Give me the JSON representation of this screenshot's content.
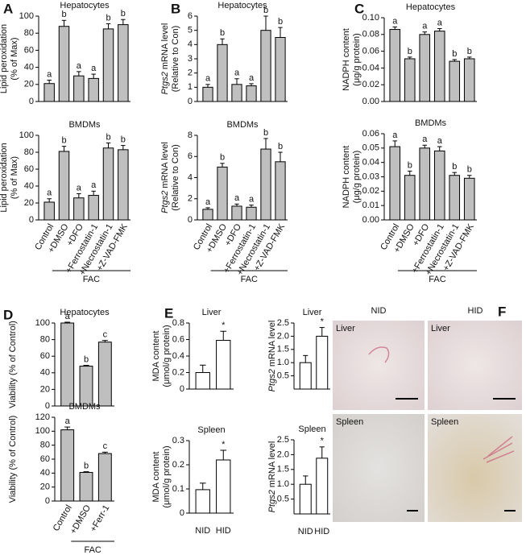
{
  "panel_labels": [
    "A",
    "B",
    "C",
    "D",
    "E",
    "F"
  ],
  "chart_data": [
    {
      "type": "bar",
      "title": "Hepatocytes",
      "ylabel": [
        "Lipid peroxidation",
        "(% of Max)"
      ],
      "categories": [
        null,
        null,
        null,
        null,
        null,
        null
      ],
      "values": [
        21,
        88,
        30,
        27,
        85,
        90
      ],
      "errors": [
        4,
        7,
        5,
        5,
        6,
        6
      ],
      "letters": [
        "a",
        "b",
        "a",
        "a",
        "b",
        "b"
      ],
      "color": "#bfbfbf",
      "ylim": [
        0,
        100
      ],
      "yticks": [
        0,
        20,
        40,
        60,
        80,
        100
      ]
    },
    {
      "type": "bar",
      "title": "BMDMs",
      "ylabel": [
        "Lipid peroxidation",
        "(% of Max)"
      ],
      "categories": [
        "Control",
        "+DMSO",
        "+DFO",
        "+Ferrostatin-1",
        "+Necrostatin-1",
        "+Z-VAD-FMK"
      ],
      "values": [
        21,
        81,
        26,
        29,
        85,
        83
      ],
      "errors": [
        4,
        6,
        5,
        5,
        6,
        5
      ],
      "letters": [
        "a",
        "b",
        "a",
        "a",
        "b",
        "b"
      ],
      "color": "#bfbfbf",
      "ylim": [
        0,
        100
      ],
      "yticks": [
        0,
        20,
        40,
        60,
        80,
        100
      ],
      "group_label": "FAC"
    },
    {
      "type": "bar",
      "title": "Hepatocytes",
      "ylabel_gene": "Ptgs2",
      "ylabel": [
        "mRNA level",
        "(Relative to Con)"
      ],
      "categories": [
        null,
        null,
        null,
        null,
        null,
        null
      ],
      "values": [
        1,
        4,
        1.2,
        1.1,
        5,
        4.5
      ],
      "errors": [
        0.2,
        0.4,
        0.4,
        0.15,
        1,
        0.7
      ],
      "letters": [
        "a",
        "b",
        "a",
        "a",
        "b",
        "b"
      ],
      "color": "#bfbfbf",
      "ylim": [
        0,
        6
      ],
      "yticks": [
        0,
        1,
        2,
        3,
        4,
        5,
        6
      ]
    },
    {
      "type": "bar",
      "title": "BMDMs",
      "ylabel_gene": "Ptgs2",
      "ylabel": [
        "mRNA level",
        "(Relative to Con)"
      ],
      "categories": [
        "Control",
        "+DMSO",
        "+DFO",
        "+Ferrostatin-1",
        "+Necrostatin-1",
        "+Z-VAD-FMK"
      ],
      "values": [
        1,
        5,
        1.3,
        1.2,
        6.7,
        5.5
      ],
      "errors": [
        0.15,
        0.35,
        0.2,
        0.2,
        1,
        0.9
      ],
      "letters": [
        "a",
        "b",
        "a",
        "a",
        "b",
        "b"
      ],
      "color": "#bfbfbf",
      "ylim": [
        0,
        8
      ],
      "yticks": [
        0,
        2,
        4,
        6,
        8
      ],
      "group_label": "FAC"
    },
    {
      "type": "bar",
      "title": "Hepatocytes",
      "ylabel": [
        "NADPH content",
        "(μg/g protein)"
      ],
      "categories": [
        null,
        null,
        null,
        null,
        null,
        null
      ],
      "values": [
        0.086,
        0.051,
        0.08,
        0.084,
        0.048,
        0.051
      ],
      "errors": [
        0.003,
        0.002,
        0.003,
        0.003,
        0.002,
        0.002
      ],
      "letters": [
        "a",
        "b",
        "a",
        "a",
        "b",
        "b"
      ],
      "color": "#bfbfbf",
      "ylim": [
        0,
        0.1
      ],
      "yticks": [
        {
          "value": 0,
          "label": "0.00"
        },
        {
          "value": 0.02,
          "label": "0.02"
        },
        {
          "value": 0.04,
          "label": "0.04"
        },
        {
          "value": 0.06,
          "label": "0.06"
        },
        {
          "value": 0.08,
          "label": "0.08"
        },
        {
          "value": 0.1,
          "label": "0.10"
        }
      ]
    },
    {
      "type": "bar",
      "title": "BMDMs",
      "ylabel": [
        "NADPH content",
        "(μg/g protein)"
      ],
      "categories": [
        "Control",
        "+DMSO",
        "+DFO",
        "+Ferrostatin-1",
        "+Necrostatin-1",
        "+Z-VAD-FMK"
      ],
      "values": [
        0.051,
        0.031,
        0.05,
        0.048,
        0.031,
        0.029
      ],
      "errors": [
        0.004,
        0.003,
        0.002,
        0.003,
        0.002,
        0.002
      ],
      "letters": [
        "a",
        "b",
        "a",
        "a",
        "b",
        "b"
      ],
      "color": "#bfbfbf",
      "ylim": [
        0,
        0.06
      ],
      "yticks": [
        {
          "value": 0,
          "label": "0.00"
        },
        {
          "value": 0.01,
          "label": "0.01"
        },
        {
          "value": 0.02,
          "label": "0.02"
        },
        {
          "value": 0.03,
          "label": "0.03"
        },
        {
          "value": 0.04,
          "label": "0.04"
        },
        {
          "value": 0.05,
          "label": "0.05"
        },
        {
          "value": 0.06,
          "label": "0.06"
        }
      ],
      "group_label": "FAC"
    },
    {
      "type": "bar",
      "title": "Hepatocytes",
      "ylabel": [
        "Viability (% of Control)"
      ],
      "categories": [
        null,
        null,
        null
      ],
      "values": [
        100,
        48,
        77
      ],
      "errors": [
        1,
        1,
        2
      ],
      "letters": [
        "a",
        "b",
        "c"
      ],
      "color": "#bfbfbf",
      "ylim": [
        0,
        100
      ],
      "yticks": [
        0,
        20,
        40,
        60,
        80,
        100
      ]
    },
    {
      "type": "bar",
      "title": "BMDMs",
      "ylabel": [
        "Viability (% of Control)"
      ],
      "categories": [
        "Control",
        "+DMSO",
        "+Ferr-1"
      ],
      "values": [
        102,
        41,
        68
      ],
      "errors": [
        4,
        1,
        2
      ],
      "letters": [
        "a",
        "b",
        "c"
      ],
      "color": "#bfbfbf",
      "ylim": [
        0,
        120
      ],
      "yticks": [
        0,
        20,
        40,
        60,
        80,
        100,
        120
      ],
      "group_label": "FAC"
    },
    {
      "type": "bar",
      "title": "Liver",
      "ylabel": [
        "MDA content",
        "(μmol/g protein)"
      ],
      "categories": [
        null,
        null
      ],
      "values": [
        0.2,
        0.59
      ],
      "errors": [
        0.09,
        0.11
      ],
      "letters": [
        null,
        "*"
      ],
      "color": "#ffffff",
      "ylim": [
        0,
        0.8
      ],
      "yticks": [
        0,
        0.2,
        0.4,
        0.6,
        0.8
      ]
    },
    {
      "type": "bar",
      "title": "Liver",
      "ylabel_gene": "Ptgs2",
      "ylabel": [
        "mRNA level"
      ],
      "categories": [
        null,
        null
      ],
      "values": [
        1.0,
        2.0
      ],
      "errors": [
        0.27,
        0.33
      ],
      "letters": [
        null,
        "*"
      ],
      "color": "#ffffff",
      "ylim": [
        0,
        2.5
      ],
      "yticks": [
        0.5,
        {
          "value": 1,
          "label": "1.0"
        },
        1.5,
        {
          "value": 2,
          "label": "2.0"
        },
        2.5
      ]
    },
    {
      "type": "bar",
      "title": "Spleen",
      "ylabel": [
        "MDA content",
        "(μmol/g protein)"
      ],
      "categories": [
        "NID",
        "HID"
      ],
      "values": [
        0.097,
        0.22
      ],
      "errors": [
        0.027,
        0.04
      ],
      "letters": [
        null,
        "*"
      ],
      "color": "#ffffff",
      "ylim": [
        0,
        0.3
      ],
      "yticks": [
        0,
        0.1,
        0.2,
        0.3
      ]
    },
    {
      "type": "bar",
      "title": "Spleen",
      "ylabel_gene": "Ptgs2",
      "ylabel": [
        "mRNA level"
      ],
      "categories": [
        "NID",
        "HID"
      ],
      "values": [
        1.0,
        1.88
      ],
      "errors": [
        0.28,
        0.38
      ],
      "letters": [
        null,
        "*"
      ],
      "color": "#ffffff",
      "ylim": [
        0,
        2.5
      ],
      "yticks": [
        0.5,
        {
          "value": 1,
          "label": "1.0"
        },
        1.5,
        {
          "value": 2,
          "label": "2.0"
        },
        2.5
      ]
    }
  ],
  "images": {
    "columns": [
      "NID",
      "HID"
    ],
    "tiles": [
      {
        "label": "Liver"
      },
      {
        "label": "Liver"
      },
      {
        "label": "Spleen"
      },
      {
        "label": "Spleen"
      }
    ]
  }
}
